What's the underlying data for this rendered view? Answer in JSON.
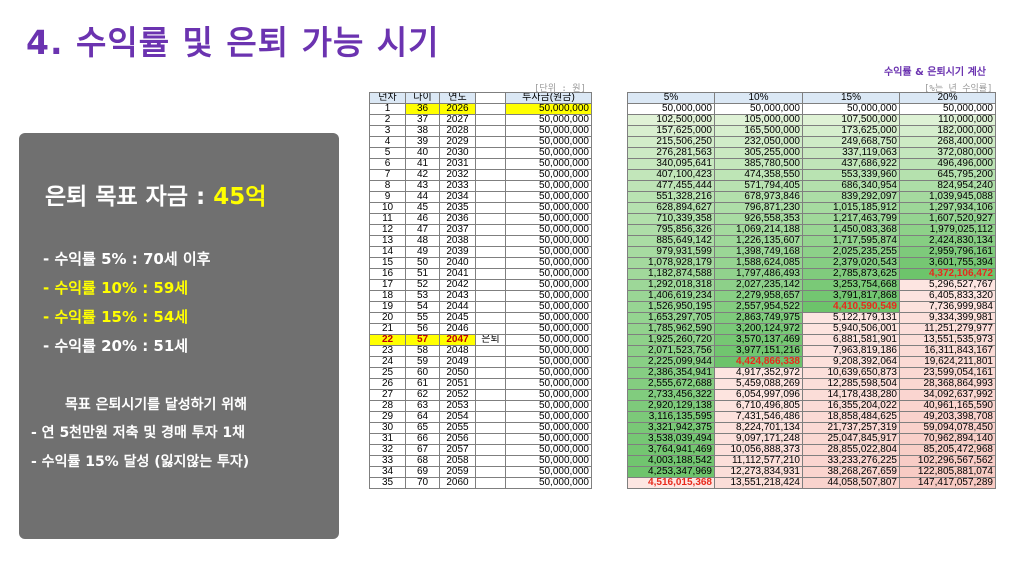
{
  "title": "4. 수익률 및 은퇴 가능 시기",
  "calc_title": "수익률 & 은퇴시기 계산",
  "unit_left": "[단위 : 원]",
  "unit_right": "[%는 년 수익률]",
  "panel": {
    "goal_label": "은퇴 목표 자금 : ",
    "goal_value": "45억",
    "returns": [
      {
        "text": "- 수익률   5% : 70세 이후",
        "highlight": false
      },
      {
        "text": "- 수익률 10% : 59세",
        "highlight": true
      },
      {
        "text": "- 수익률 15% : 54세",
        "highlight": true
      },
      {
        "text": "- 수익률 20% : 51세",
        "highlight": false
      }
    ],
    "plan_heading": "목표 은퇴시기를 달성하기 위해",
    "plan_items": [
      "- 연 5천만원 저축 및 경매 투자 1채",
      "- 수익률 15% 달성 (잃지않는 투자)"
    ]
  },
  "left_headers": [
    "년차",
    "나이",
    "연도",
    "",
    "투자금(원금)"
  ],
  "right_headers": [
    "5%",
    "10%",
    "15%",
    "20%"
  ],
  "retire_mark": "은퇴",
  "investment": "50,000,000",
  "rows": [
    [
      "1",
      "36",
      "2026",
      "50,000,000",
      "50,000,000",
      "50,000,000",
      "50,000,000"
    ],
    [
      "2",
      "37",
      "2027",
      "102,500,000",
      "105,000,000",
      "107,500,000",
      "110,000,000"
    ],
    [
      "3",
      "38",
      "2028",
      "157,625,000",
      "165,500,000",
      "173,625,000",
      "182,000,000"
    ],
    [
      "4",
      "39",
      "2029",
      "215,506,250",
      "232,050,000",
      "249,668,750",
      "268,400,000"
    ],
    [
      "5",
      "40",
      "2030",
      "276,281,563",
      "305,255,000",
      "337,119,063",
      "372,080,000"
    ],
    [
      "6",
      "41",
      "2031",
      "340,095,641",
      "385,780,500",
      "437,686,922",
      "496,496,000"
    ],
    [
      "7",
      "42",
      "2032",
      "407,100,423",
      "474,358,550",
      "553,339,960",
      "645,795,200"
    ],
    [
      "8",
      "43",
      "2033",
      "477,455,444",
      "571,794,405",
      "686,340,954",
      "824,954,240"
    ],
    [
      "9",
      "44",
      "2034",
      "551,328,216",
      "678,973,846",
      "839,292,097",
      "1,039,945,088"
    ],
    [
      "10",
      "45",
      "2035",
      "628,894,627",
      "796,871,230",
      "1,015,185,912",
      "1,297,934,106"
    ],
    [
      "11",
      "46",
      "2036",
      "710,339,358",
      "926,558,353",
      "1,217,463,799",
      "1,607,520,927"
    ],
    [
      "12",
      "47",
      "2037",
      "795,856,326",
      "1,069,214,188",
      "1,450,083,368",
      "1,979,025,112"
    ],
    [
      "13",
      "48",
      "2038",
      "885,649,142",
      "1,226,135,607",
      "1,717,595,874",
      "2,424,830,134"
    ],
    [
      "14",
      "49",
      "2039",
      "979,931,599",
      "1,398,749,168",
      "2,025,235,255",
      "2,959,796,161"
    ],
    [
      "15",
      "50",
      "2040",
      "1,078,928,179",
      "1,588,624,085",
      "2,379,020,543",
      "3,601,755,394"
    ],
    [
      "16",
      "51",
      "2041",
      "1,182,874,588",
      "1,797,486,493",
      "2,785,873,625",
      "4,372,106,472"
    ],
    [
      "17",
      "52",
      "2042",
      "1,292,018,318",
      "2,027,235,142",
      "3,253,754,668",
      "5,296,527,767"
    ],
    [
      "18",
      "53",
      "2043",
      "1,406,619,234",
      "2,279,958,657",
      "3,791,817,868",
      "6,405,833,320"
    ],
    [
      "19",
      "54",
      "2044",
      "1,526,950,195",
      "2,557,954,522",
      "4,410,590,549",
      "7,736,999,984"
    ],
    [
      "20",
      "55",
      "2045",
      "1,653,297,705",
      "2,863,749,975",
      "5,122,179,131",
      "9,334,399,981"
    ],
    [
      "21",
      "56",
      "2046",
      "1,785,962,590",
      "3,200,124,972",
      "5,940,506,001",
      "11,251,279,977"
    ],
    [
      "22",
      "57",
      "2047",
      "1,925,260,720",
      "3,570,137,469",
      "6,881,581,901",
      "13,551,535,973"
    ],
    [
      "23",
      "58",
      "2048",
      "2,071,523,756",
      "3,977,151,216",
      "7,963,819,186",
      "16,311,843,167"
    ],
    [
      "24",
      "59",
      "2049",
      "2,225,099,944",
      "4,424,866,338",
      "9,208,392,064",
      "19,624,211,801"
    ],
    [
      "25",
      "60",
      "2050",
      "2,386,354,941",
      "4,917,352,972",
      "10,639,650,873",
      "23,599,054,161"
    ],
    [
      "26",
      "61",
      "2051",
      "2,555,672,688",
      "5,459,088,269",
      "12,285,598,504",
      "28,368,864,993"
    ],
    [
      "27",
      "62",
      "2052",
      "2,733,456,322",
      "6,054,997,096",
      "14,178,438,280",
      "34,092,637,992"
    ],
    [
      "28",
      "63",
      "2053",
      "2,920,129,138",
      "6,710,496,805",
      "16,355,204,022",
      "40,961,165,590"
    ],
    [
      "29",
      "64",
      "2054",
      "3,116,135,595",
      "7,431,546,486",
      "18,858,484,625",
      "49,203,398,708"
    ],
    [
      "30",
      "65",
      "2055",
      "3,321,942,375",
      "8,224,701,134",
      "21,737,257,319",
      "59,094,078,450"
    ],
    [
      "31",
      "66",
      "2056",
      "3,538,039,494",
      "9,097,171,248",
      "25,047,845,917",
      "70,962,894,140"
    ],
    [
      "32",
      "67",
      "2057",
      "3,764,941,469",
      "10,056,888,373",
      "28,855,022,804",
      "85,205,472,968"
    ],
    [
      "33",
      "68",
      "2058",
      "4,003,188,542",
      "11,112,577,210",
      "33,233,276,225",
      "102,296,567,562"
    ],
    [
      "34",
      "69",
      "2059",
      "4,253,347,969",
      "12,273,834,931",
      "38,268,267,659",
      "122,805,881,074"
    ],
    [
      "35",
      "70",
      "2060",
      "4,516,015,368",
      "13,551,218,424",
      "44,058,507,807",
      "147,417,057,289"
    ]
  ],
  "retire_row_index": 21,
  "highlight_cells": [
    [
      15,
      3
    ],
    [
      18,
      2
    ],
    [
      23,
      1
    ],
    [
      34,
      0
    ]
  ],
  "colors": {
    "title": "#6b33b0",
    "highlight": "#ffff00",
    "target_hit": "#e8291c",
    "below_green_light": "#e6f5dc",
    "below_green_dark": "#6cc36a",
    "above_red_light": "#fde6e2",
    "above_red_dark": "#f4b6ad"
  }
}
